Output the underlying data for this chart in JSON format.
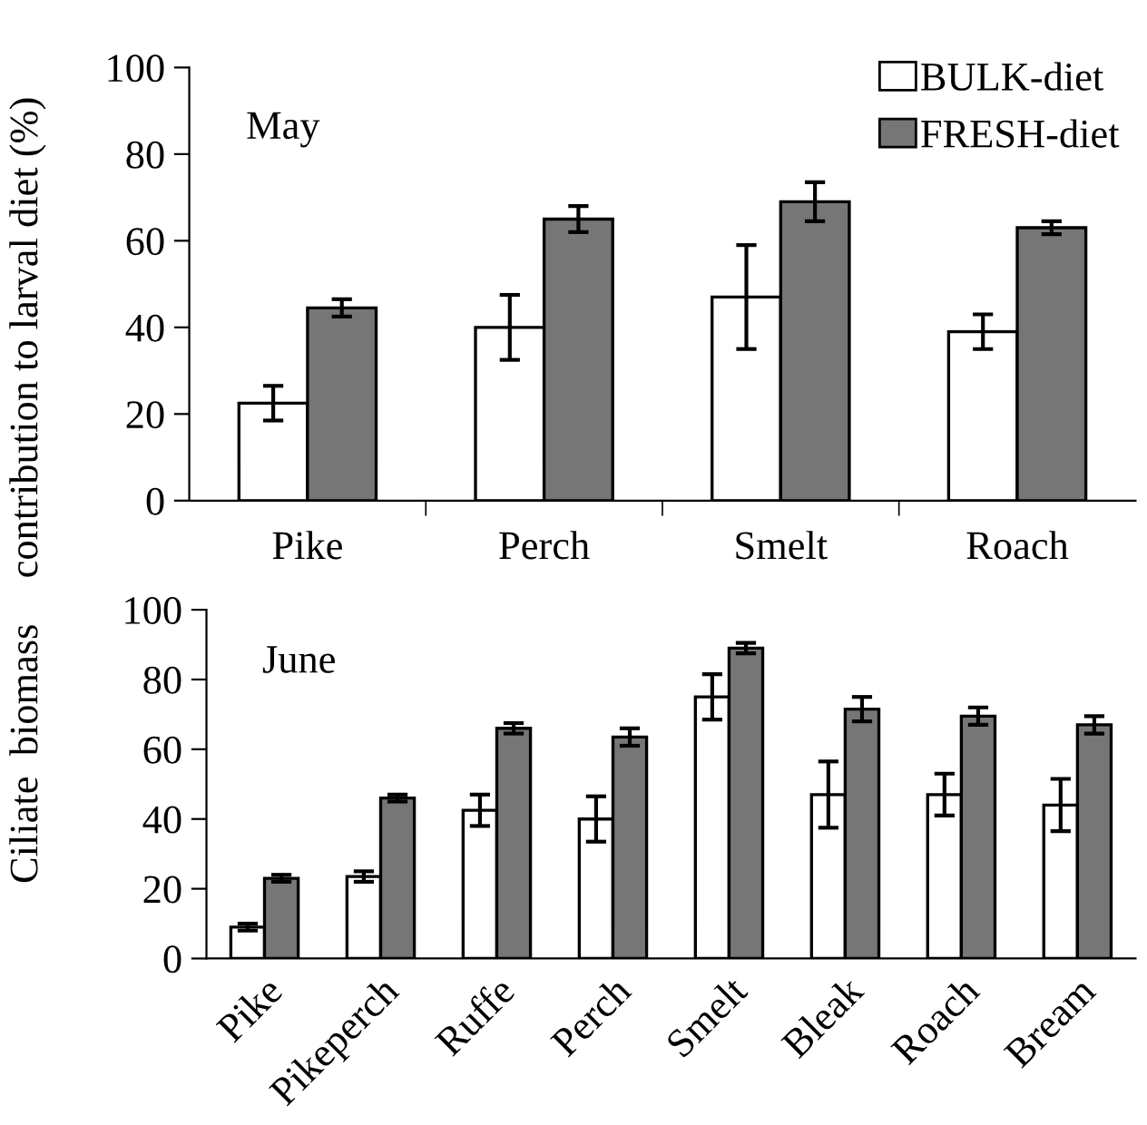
{
  "chart_data": [
    {
      "type": "bar",
      "ylabel": "contribution to larval diet (%)",
      "annotations": [
        "May"
      ],
      "categories": [
        "Pike",
        "Perch",
        "Smelt",
        "Roach"
      ],
      "series": [
        {
          "name": "BULK-diet",
          "color": "#ffffff",
          "values": [
            22.5,
            40,
            47,
            39
          ],
          "errors": [
            4,
            7.5,
            12,
            4
          ]
        },
        {
          "name": "FRESH-diet",
          "color": "#767676",
          "values": [
            44.5,
            65,
            69,
            63
          ],
          "errors": [
            2,
            3,
            4.5,
            1.5
          ]
        }
      ],
      "ylim": [
        0,
        100
      ],
      "yticks": [
        0,
        20,
        40,
        60,
        80,
        100
      ],
      "legend": "top right",
      "grid": false
    },
    {
      "type": "bar",
      "ylabel": "Ciliate  biomass",
      "annotations": [
        "June"
      ],
      "categories": [
        "Pike",
        "Pikeperch",
        "Ruffe",
        "Perch",
        "Smelt",
        "Bleak",
        "Roach",
        "Bream"
      ],
      "series": [
        {
          "color": "#ffffff",
          "values": [
            9,
            23.5,
            42.5,
            40,
            75,
            47,
            47,
            44
          ],
          "errors": [
            1,
            1.5,
            4.5,
            6.5,
            6.5,
            9.5,
            6,
            7.5
          ]
        },
        {
          "color": "#767676",
          "values": [
            23,
            46,
            66,
            63.5,
            89,
            71.5,
            69.5,
            67
          ],
          "errors": [
            1,
            1,
            1.5,
            2.5,
            1.5,
            3.5,
            2.5,
            2.5
          ]
        }
      ],
      "ylim": [
        0,
        100
      ],
      "yticks": [
        0,
        20,
        40,
        60,
        80,
        100
      ],
      "legend": false,
      "grid": false
    }
  ]
}
